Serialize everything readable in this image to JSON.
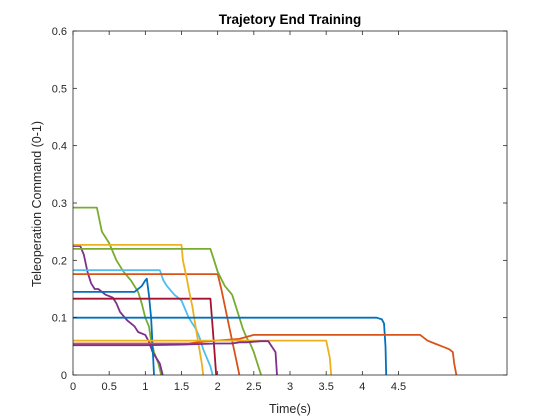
{
  "chart_data": {
    "type": "line",
    "title": "Trajetory End Training",
    "xlabel": "Time(s)",
    "ylabel": "Teleoperation Command (0-1)",
    "xlim": [
      0,
      6
    ],
    "ylim": [
      0,
      0.6
    ],
    "xticks": [
      "0",
      "0.5",
      "1",
      "1.5",
      "2",
      "2.5",
      "3",
      "3.5",
      "4",
      "4.5"
    ],
    "xtick_values": [
      0,
      0.5,
      1,
      1.5,
      2,
      2.5,
      3,
      3.5,
      4,
      4.5
    ],
    "yticks": [
      "0",
      "0.1",
      "0.2",
      "0.3",
      "0.4",
      "0.5",
      "0.6"
    ],
    "ytick_values": [
      0,
      0.1,
      0.2,
      0.3,
      0.4,
      0.5,
      0.6
    ],
    "grid": false,
    "series": [
      {
        "color": "#77AC30",
        "points": [
          [
            0,
            0.292
          ],
          [
            0.33,
            0.292
          ],
          [
            0.35,
            0.28
          ],
          [
            0.4,
            0.25
          ],
          [
            0.5,
            0.23
          ],
          [
            0.6,
            0.2
          ],
          [
            0.7,
            0.18
          ],
          [
            0.8,
            0.165
          ],
          [
            0.9,
            0.145
          ],
          [
            0.95,
            0.125
          ],
          [
            1.0,
            0.1
          ],
          [
            1.05,
            0.085
          ],
          [
            1.08,
            0.06
          ],
          [
            1.12,
            0.04
          ],
          [
            1.18,
            0.02
          ],
          [
            1.22,
            0
          ]
        ]
      },
      {
        "color": "#7E2F8E",
        "points": [
          [
            0,
            0.225
          ],
          [
            0.1,
            0.225
          ],
          [
            0.15,
            0.21
          ],
          [
            0.2,
            0.18
          ],
          [
            0.25,
            0.16
          ],
          [
            0.3,
            0.15
          ],
          [
            0.35,
            0.15
          ],
          [
            0.45,
            0.14
          ],
          [
            0.55,
            0.135
          ],
          [
            0.6,
            0.125
          ],
          [
            0.65,
            0.11
          ],
          [
            0.75,
            0.095
          ],
          [
            0.85,
            0.085
          ],
          [
            0.9,
            0.075
          ],
          [
            1.0,
            0.07
          ],
          [
            1.05,
            0.058
          ],
          [
            1.1,
            0.04
          ],
          [
            1.2,
            0.02
          ],
          [
            1.24,
            0
          ]
        ]
      },
      {
        "color": "#0072BD",
        "points": [
          [
            0,
            0.145
          ],
          [
            0.85,
            0.145
          ],
          [
            0.95,
            0.155
          ],
          [
            1.0,
            0.165
          ],
          [
            1.02,
            0.168
          ],
          [
            1.05,
            0.14
          ],
          [
            1.08,
            0.1
          ],
          [
            1.1,
            0.05
          ],
          [
            1.12,
            0
          ]
        ]
      },
      {
        "color": "#4DBEEE",
        "points": [
          [
            0,
            0.183
          ],
          [
            1.2,
            0.183
          ],
          [
            1.25,
            0.165
          ],
          [
            1.3,
            0.155
          ],
          [
            1.4,
            0.14
          ],
          [
            1.5,
            0.13
          ],
          [
            1.55,
            0.115
          ],
          [
            1.6,
            0.1
          ],
          [
            1.7,
            0.08
          ],
          [
            1.75,
            0.065
          ],
          [
            1.8,
            0.045
          ],
          [
            1.85,
            0.03
          ],
          [
            1.9,
            0.015
          ],
          [
            1.93,
            0
          ]
        ]
      },
      {
        "color": "#D95319",
        "points": [
          [
            0,
            0.176
          ],
          [
            1.3,
            0.176
          ],
          [
            2.0,
            0.176
          ],
          [
            2.05,
            0.15
          ],
          [
            2.1,
            0.12
          ],
          [
            2.15,
            0.09
          ],
          [
            2.2,
            0.06
          ],
          [
            2.25,
            0.03
          ],
          [
            2.3,
            0
          ]
        ]
      },
      {
        "color": "#A2142F",
        "points": [
          [
            0,
            0.133
          ],
          [
            1.5,
            0.133
          ],
          [
            1.9,
            0.133
          ],
          [
            1.92,
            0.1
          ],
          [
            1.95,
            0.05
          ],
          [
            1.98,
            0
          ]
        ]
      },
      {
        "color": "#EDB120",
        "points": [
          [
            0,
            0.227
          ],
          [
            1.5,
            0.227
          ],
          [
            1.52,
            0.2
          ],
          [
            1.57,
            0.17
          ],
          [
            1.6,
            0.15
          ],
          [
            1.65,
            0.12
          ],
          [
            1.7,
            0.08
          ],
          [
            1.74,
            0.05
          ],
          [
            1.78,
            0.02
          ],
          [
            1.8,
            0
          ]
        ]
      },
      {
        "color": "#77AC30",
        "points": [
          [
            0,
            0.22
          ],
          [
            1.9,
            0.22
          ],
          [
            1.95,
            0.2
          ],
          [
            2.0,
            0.18
          ],
          [
            2.1,
            0.155
          ],
          [
            2.2,
            0.14
          ],
          [
            2.25,
            0.12
          ],
          [
            2.3,
            0.1
          ],
          [
            2.35,
            0.08
          ],
          [
            2.4,
            0.065
          ],
          [
            2.45,
            0.055
          ],
          [
            2.5,
            0.04
          ],
          [
            2.55,
            0.02
          ],
          [
            2.6,
            0
          ]
        ]
      },
      {
        "color": "#0072BD",
        "points": [
          [
            0,
            0.1
          ],
          [
            4.2,
            0.1
          ],
          [
            4.27,
            0.097
          ],
          [
            4.3,
            0.09
          ],
          [
            4.32,
            0.05
          ],
          [
            4.33,
            0
          ]
        ]
      },
      {
        "color": "#D95319",
        "points": [
          [
            0,
            0.055
          ],
          [
            1.6,
            0.055
          ],
          [
            1.8,
            0.058
          ],
          [
            2.3,
            0.063
          ],
          [
            2.5,
            0.07
          ],
          [
            4.8,
            0.07
          ],
          [
            4.9,
            0.06
          ],
          [
            5.0,
            0.055
          ],
          [
            5.1,
            0.05
          ],
          [
            5.2,
            0.045
          ],
          [
            5.25,
            0.04
          ],
          [
            5.27,
            0.02
          ],
          [
            5.3,
            0
          ]
        ]
      },
      {
        "color": "#EDB120",
        "points": [
          [
            0,
            0.06
          ],
          [
            3.5,
            0.06
          ],
          [
            3.55,
            0.03
          ],
          [
            3.57,
            0
          ]
        ]
      },
      {
        "color": "#7E2F8E",
        "points": [
          [
            0,
            0.052
          ],
          [
            1.0,
            0.052
          ],
          [
            1.5,
            0.053
          ],
          [
            2.0,
            0.055
          ],
          [
            2.2,
            0.055
          ],
          [
            2.3,
            0.057
          ],
          [
            2.4,
            0.057
          ],
          [
            2.5,
            0.058
          ],
          [
            2.6,
            0.059
          ],
          [
            2.7,
            0.059
          ],
          [
            2.8,
            0.04
          ],
          [
            2.82,
            0
          ]
        ]
      }
    ]
  }
}
